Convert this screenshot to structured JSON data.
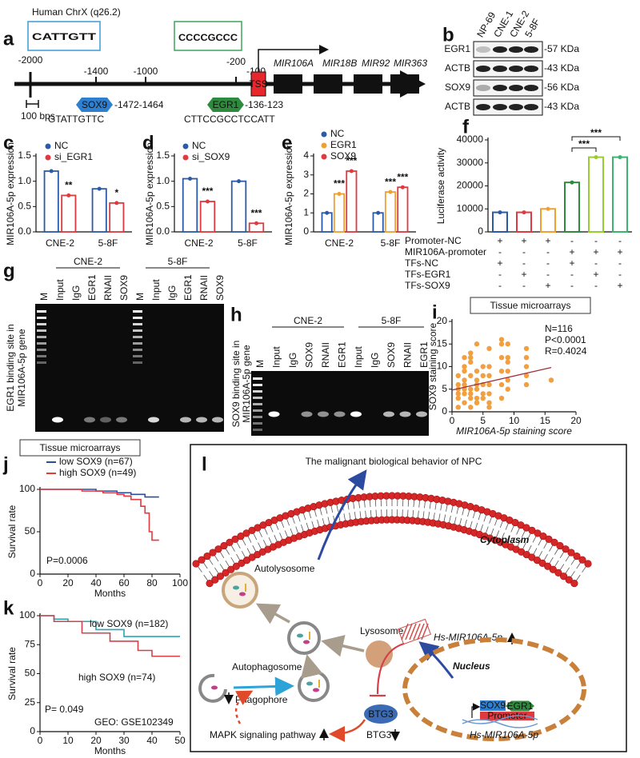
{
  "panel_a": {
    "letter": "a",
    "title": "Human ChrX (q26.2)",
    "logos": [
      "CATTGTT",
      "CCCCGCCC"
    ],
    "positions": [
      "-2000",
      "-1400",
      "-1000",
      "-200",
      "-100"
    ],
    "scale": "100 bps",
    "tss": "TSS",
    "genes": [
      "MIR106A",
      "MIR18B",
      "MIR92",
      "MIR363"
    ],
    "sox9": {
      "name": "SOX9",
      "site": "-1472-1464",
      "sequence": "GTATTGTTC"
    },
    "egr1": {
      "name": "EGR1",
      "site": "-136-123",
      "sequence": "CTTCCGCCTCCATT"
    }
  },
  "panel_b": {
    "letter": "b",
    "samples": [
      "NP-69",
      "CNE-1",
      "CNE-2",
      "5-8F"
    ],
    "rows": [
      {
        "name": "EGR1",
        "size": "-57 KDa"
      },
      {
        "name": "ACTB",
        "size": "-43 KDa"
      },
      {
        "name": "SOX9",
        "size": "-56 KDa"
      },
      {
        "name": "ACTB",
        "size": "-43 KDa"
      }
    ]
  },
  "panel_g": {
    "letter": "g",
    "ylabel": [
      "EGR1 binding site in",
      "MIR106A-5p gene"
    ],
    "groups": [
      {
        "name": "CNE-2",
        "color": "#2ca02c"
      },
      {
        "name": "5-8F",
        "color": "#9b3fb5"
      }
    ],
    "lanes": [
      "M",
      "Input",
      "IgG",
      "EGR1",
      "RNAII",
      "SOX9",
      "M",
      "Input",
      "IgG",
      "EGR1",
      "RNAII",
      "SOX9"
    ]
  },
  "panel_h": {
    "letter": "h",
    "ylabel": [
      "SOX9 binding site in",
      "MIR106A-5p gene"
    ],
    "groups": [
      {
        "name": "CNE-2",
        "color": "#2ca02c"
      },
      {
        "name": "5-8F",
        "color": "#9b3fb5"
      }
    ],
    "lanes": [
      "M",
      "Input",
      "IgG",
      "SOX9",
      "RNAII",
      "EGR1",
      "Input",
      "IgG",
      "SOX9",
      "RNAII",
      "EGR1"
    ]
  },
  "panel_l": {
    "letter": "l",
    "title": "The malignant biological behavior of NPC",
    "cytoplasm": "Cytoplasm",
    "nucleus": "Nucleus",
    "autolysosome": "Autolysosome",
    "lysosome": "Lysosome",
    "autophagosome": "Autophagosome",
    "phagophore": "Phagophore",
    "mapk": "MAPK signaling pathway",
    "btg3_protein": "BTG3",
    "btg3_level": "BTG3",
    "mirna": "Hs-MIR106A-5p",
    "gene": "Hs-MIR106A-5p",
    "sox9": "SOX9",
    "egr1": "EGR1",
    "promoter": "Promoter"
  },
  "chart_data": [
    {
      "type": "bar",
      "panel_letter": "c",
      "ylabel": "MIR106A-5p expression",
      "categories": [
        "CNE-2",
        "5-8F"
      ],
      "series": [
        {
          "name": "NC",
          "color": "#2b5ba8",
          "values": [
            1.2,
            0.85
          ]
        },
        {
          "name": "si_EGR1",
          "color": "#e0393e",
          "values": [
            0.72,
            0.57
          ]
        }
      ],
      "ylim": [
        0,
        1.5
      ],
      "yticks": [
        {
          "value": 0,
          "label": "0.0"
        },
        {
          "value": 0.5,
          "label": "0.5"
        },
        {
          "value": 1,
          "label": "1.0"
        },
        {
          "value": 1.5,
          "label": "1.5"
        }
      ],
      "annotations": [
        "**",
        "*"
      ]
    },
    {
      "type": "bar",
      "panel_letter": "d",
      "ylabel": "MIR106A-5p expression",
      "categories": [
        "CNE-2",
        "5-8F"
      ],
      "series": [
        {
          "name": "NC",
          "color": "#2b5ba8",
          "values": [
            1.05,
            1.0
          ]
        },
        {
          "name": "si_SOX9",
          "color": "#e0393e",
          "values": [
            0.6,
            0.17
          ]
        }
      ],
      "ylim": [
        0,
        1.5
      ],
      "yticks": [
        {
          "value": 0,
          "label": "0.0"
        },
        {
          "value": 0.5,
          "label": "0.5"
        },
        {
          "value": 1,
          "label": "1.0"
        },
        {
          "value": 1.5,
          "label": "1.5"
        }
      ],
      "annotations": [
        "***",
        "***"
      ]
    },
    {
      "type": "bar",
      "panel_letter": "e",
      "ylabel": "MIR106A-5p expression",
      "categories": [
        "CNE-2",
        "5-8F"
      ],
      "series": [
        {
          "name": "NC",
          "color": "#2b5ba8",
          "values": [
            1.0,
            1.0
          ]
        },
        {
          "name": "EGR1",
          "color": "#f0a030",
          "values": [
            2.0,
            2.1
          ]
        },
        {
          "name": "SOX9",
          "color": "#e0393e",
          "values": [
            3.2,
            2.35
          ]
        }
      ],
      "ylim": [
        0,
        4
      ],
      "yticks": [
        0,
        1,
        2,
        3,
        4
      ],
      "annotations": [
        "***",
        "***",
        "***",
        "***"
      ]
    },
    {
      "type": "bar",
      "panel_letter": "f",
      "ylabel": "Luciferase activity",
      "categories": [
        null,
        null,
        null,
        null,
        null,
        null
      ],
      "values": [
        8500,
        8500,
        10000,
        21500,
        32500,
        32500
      ],
      "colors": [
        "#2b5ba8",
        "#e0393e",
        "#f0a030",
        "#2e8b3e",
        "#9acd32",
        "#3cb371"
      ],
      "ylim": [
        0,
        40000
      ],
      "yticks": [
        0,
        10000,
        20000,
        30000,
        40000
      ],
      "annotations": [
        "***",
        "***"
      ],
      "design": [
        {
          "name": "Promoter-NC",
          "marks": [
            "+",
            "+",
            "+",
            "-",
            "-",
            "-"
          ]
        },
        {
          "name": "MIR106A-promoter",
          "marks": [
            "-",
            "-",
            "-",
            "+",
            "+",
            "+"
          ]
        },
        {
          "name": "TFs-NC",
          "marks": [
            "+",
            "-",
            "-",
            "+",
            "-",
            "-"
          ]
        },
        {
          "name": "TFs-EGR1",
          "marks": [
            "-",
            "+",
            "-",
            "-",
            "+",
            "-"
          ]
        },
        {
          "name": "TFs-SOX9",
          "marks": [
            "-",
            "-",
            "+",
            "-",
            "-",
            "+"
          ]
        }
      ]
    },
    {
      "type": "scatter",
      "panel_letter": "i",
      "title": "Tissue microarrays",
      "xlabel": "MIR106A-5p staining score",
      "ylabel": "SOX9 staining score",
      "color": "#f0a040",
      "x": [
        1,
        1,
        1,
        1,
        1,
        2,
        2,
        2,
        2,
        2,
        2,
        2,
        3,
        3,
        3,
        3,
        3,
        3,
        3,
        4,
        4,
        4,
        4,
        4,
        4,
        4,
        5,
        5,
        5,
        5,
        5,
        6,
        6,
        6,
        6,
        6,
        6,
        8,
        8,
        8,
        8,
        8,
        8,
        9,
        9,
        9,
        9,
        9,
        12,
        12,
        12,
        12,
        12,
        16,
        2,
        3,
        4,
        6,
        1,
        9
      ],
      "y": [
        1,
        3,
        4,
        6,
        8,
        2,
        4,
        5,
        6,
        7,
        9,
        10,
        1,
        3,
        4,
        5,
        8,
        11,
        12,
        2,
        3,
        5,
        6,
        7,
        9,
        15,
        3,
        4,
        6,
        8,
        10,
        2,
        4,
        6,
        8,
        10,
        14,
        3,
        6,
        9,
        12,
        15,
        16,
        5,
        7,
        9,
        12,
        15,
        6,
        8,
        10,
        12,
        14,
        7,
        12,
        13,
        2,
        1,
        5,
        11
      ],
      "trend_line": {
        "x": [
          0,
          16
        ],
        "y": [
          4.8,
          9.8
        ],
        "color": "#a0303a"
      },
      "xlim": [
        0,
        20
      ],
      "xticks": [
        0,
        5,
        10,
        15,
        20
      ],
      "ylim": [
        0,
        20
      ],
      "yticks": [
        0,
        5,
        10,
        15,
        20
      ],
      "annotations": [
        "N=116",
        "P<0.0001",
        "R=0.4024"
      ]
    },
    {
      "type": "line",
      "panel_letter": "j",
      "title": "Tissue microarrays",
      "xlabel": "Months",
      "ylabel": "Survival rate",
      "series": [
        {
          "name": "low SOX9 (n=67)",
          "color": "#2b4fa0",
          "x": [
            0,
            40,
            40,
            55,
            55,
            65,
            65,
            75,
            75,
            85
          ],
          "values": [
            100,
            100,
            98,
            98,
            96,
            96,
            94,
            94,
            91,
            91
          ]
        },
        {
          "name": "high SOX9 (n=49)",
          "color": "#e0393e",
          "x": [
            0,
            30,
            30,
            45,
            45,
            55,
            55,
            60,
            60,
            65,
            65,
            72,
            72,
            75,
            75,
            78,
            78,
            80,
            80,
            85
          ],
          "values": [
            100,
            100,
            98,
            98,
            96,
            96,
            94,
            94,
            92,
            92,
            88,
            88,
            80,
            80,
            72,
            72,
            50,
            50,
            40,
            40
          ]
        }
      ],
      "xlim": [
        0,
        100
      ],
      "xticks": [
        0,
        20,
        40,
        60,
        80,
        100
      ],
      "ylim": [
        0,
        100
      ],
      "yticks": [
        0,
        50,
        100
      ],
      "annotations": [
        "P=0.0006"
      ]
    },
    {
      "type": "line",
      "panel_letter": "k",
      "xlabel": "Months",
      "ylabel": "Survival rate",
      "series": [
        {
          "name": "low SOX9 (n=182)",
          "color": "#2aa5b5",
          "x": [
            0,
            5,
            5,
            10,
            10,
            20,
            20,
            30,
            30,
            50
          ],
          "values": [
            100,
            100,
            97,
            97,
            95,
            95,
            88,
            88,
            82,
            82
          ]
        },
        {
          "name": "high SOX9 (n=74)",
          "color": "#d6404a",
          "x": [
            0,
            5,
            5,
            15,
            15,
            25,
            25,
            35,
            35,
            40,
            40,
            50
          ],
          "values": [
            100,
            100,
            95,
            95,
            85,
            85,
            78,
            78,
            70,
            70,
            65,
            65
          ]
        }
      ],
      "xlim": [
        0,
        50
      ],
      "xticks": [
        0,
        10,
        20,
        30,
        40,
        50
      ],
      "ylim": [
        0,
        100
      ],
      "yticks": [
        0,
        25,
        50,
        75,
        100
      ],
      "annotations": [
        "P= 0.049",
        "GEO: GSE102349"
      ]
    }
  ]
}
